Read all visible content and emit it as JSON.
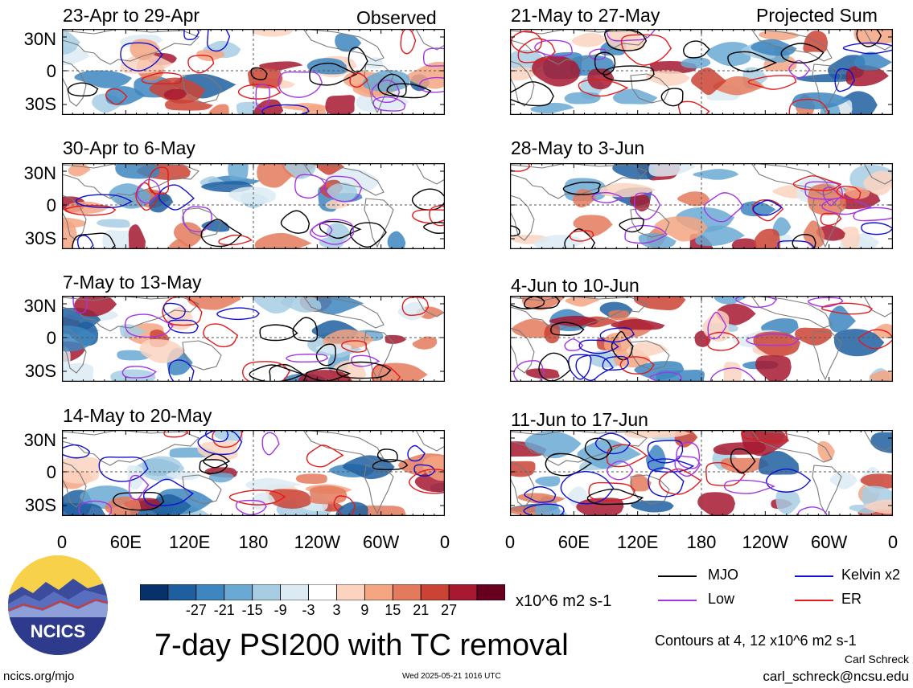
{
  "panels_left": [
    {
      "title": "23-Apr to 29-Apr",
      "tag": "Observed"
    },
    {
      "title": "30-Apr to 6-May",
      "tag": ""
    },
    {
      "title": "7-May to 13-May",
      "tag": ""
    },
    {
      "title": "14-May to 20-May",
      "tag": ""
    }
  ],
  "panels_right": [
    {
      "title": "21-May to 27-May",
      "tag": "Projected Sum"
    },
    {
      "title": "28-May to 3-Jun",
      "tag": ""
    },
    {
      "title": "4-Jun to 10-Jun",
      "tag": ""
    },
    {
      "title": "11-Jun to 17-Jun",
      "tag": ""
    }
  ],
  "lat_labels": [
    "30N",
    "0",
    "30S"
  ],
  "lon_labels": [
    "0",
    "60E",
    "120E",
    "180",
    "120W",
    "60W",
    "0"
  ],
  "colorbar": {
    "ticks": [
      "-27",
      "-21",
      "-15",
      "-9",
      "-3",
      "3",
      "9",
      "15",
      "21",
      "27"
    ],
    "units": "x10^6 m2 s-1",
    "colors": [
      "#08306b",
      "#1f5fa0",
      "#3d86c0",
      "#6aa9d4",
      "#a7cde3",
      "#dcebf3",
      "#ffffff",
      "#fbd3bf",
      "#f4a582",
      "#e37a5c",
      "#cb4335",
      "#a71930",
      "#67001f"
    ]
  },
  "legend": [
    {
      "label": "MJO",
      "color": "#000000"
    },
    {
      "label": "Kelvin x2",
      "color": "#1010d0"
    },
    {
      "label": "Low",
      "color": "#a335e6"
    },
    {
      "label": "ER",
      "color": "#e31a1c"
    }
  ],
  "title": "7-day PSI200 with TC removal",
  "contour_note": "Contours at 4, 12 x10^6 m2 s-1",
  "author": "Carl Schreck",
  "email": "carl_schreck@ncsu.edu",
  "website": "ncics.org/mjo",
  "timestamp": "Wed 2025-05-21 1016 UTC",
  "logo_text": "NCICS"
}
